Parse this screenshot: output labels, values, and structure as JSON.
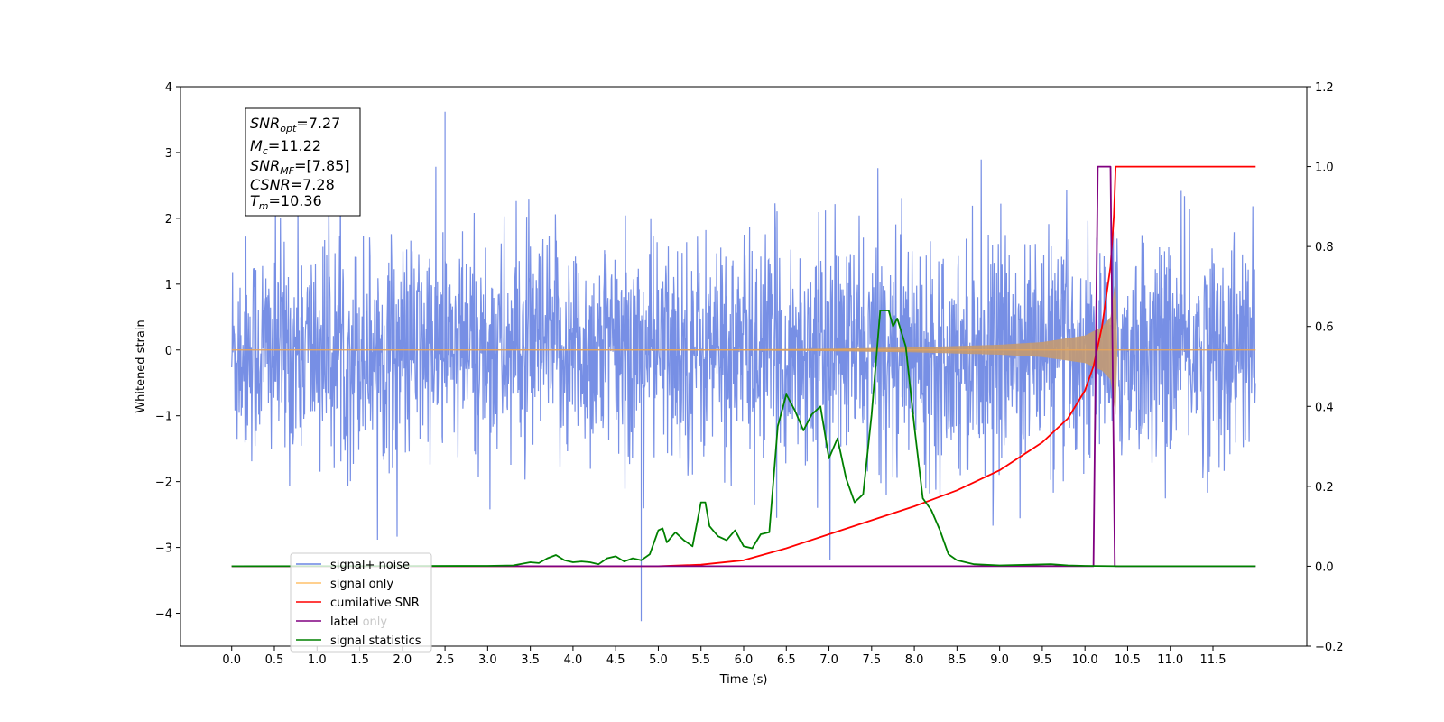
{
  "chart_data": {
    "type": "line",
    "xlabel": "Time (s)",
    "ylabel_left": "Whitened strain",
    "ylabel_right": "",
    "xlim": [
      -0.6,
      12.6
    ],
    "ylim_left": [
      -4.5,
      4.0
    ],
    "ylim_right": [
      -0.2,
      1.2
    ],
    "x_ticks": [
      0.0,
      0.5,
      1.0,
      1.5,
      2.0,
      2.5,
      3.0,
      3.5,
      4.0,
      4.5,
      5.0,
      5.5,
      6.0,
      6.5,
      7.0,
      7.5,
      8.0,
      8.5,
      9.0,
      9.5,
      10.0,
      10.5,
      11.0,
      11.5
    ],
    "x_tick_labels": [
      "0.0",
      "0.5",
      "1.0",
      "1.5",
      "2.0",
      "2.5",
      "3.0",
      "3.5",
      "4.0",
      "4.5",
      "5.0",
      "5.5",
      "6.0",
      "6.5",
      "7.0",
      "7.5",
      "8.0",
      "8.5",
      "9.0",
      "9.5",
      "10.0",
      "10.5",
      "11.0",
      "11.5"
    ],
    "y_ticks_left": [
      4,
      3,
      2,
      1,
      0,
      -1,
      -2,
      -3,
      -4
    ],
    "y_tick_labels_left": [
      "4",
      "3",
      "2",
      "1",
      "0",
      "−1",
      "−2",
      "−3",
      "−4"
    ],
    "y_ticks_right": [
      1.2,
      1.0,
      0.8,
      0.6,
      0.4,
      0.2,
      0.0,
      -0.2
    ],
    "y_tick_labels_right": [
      "1.2",
      "1.0",
      "0.8",
      "0.6",
      "0.4",
      "0.2",
      "0.0",
      "−0.2"
    ],
    "grid": false,
    "legend_position": "lower-left",
    "colors": {
      "noise": "#6b86e3",
      "signal": "#e6a55a",
      "signal_fill": "#c39a72",
      "snr": "#ff0000",
      "label": "#800080",
      "stats": "#008000"
    },
    "series": [
      {
        "name": "signal+ noise",
        "axis": "left",
        "t_start": 0.0,
        "t_end": 12.0,
        "sample_rate": 204.8,
        "seed": 12345,
        "amplitude_notes": "Gaussian noise, std ~0.9, occasional spikes to ~3.6 and ~-4.1"
      },
      {
        "name": "signal only",
        "axis": "left",
        "envelope_points": [
          [
            0.0,
            0.0
          ],
          [
            6.0,
            0.01
          ],
          [
            7.0,
            0.02
          ],
          [
            8.0,
            0.04
          ],
          [
            9.0,
            0.08
          ],
          [
            9.5,
            0.12
          ],
          [
            10.0,
            0.22
          ],
          [
            10.2,
            0.35
          ],
          [
            10.3,
            0.5
          ],
          [
            10.36,
            1.1
          ],
          [
            10.37,
            0.0
          ],
          [
            12.0,
            0.0
          ]
        ]
      },
      {
        "name": "cumilative SNR",
        "axis": "right",
        "x": [
          0.0,
          5.0,
          5.5,
          6.0,
          6.5,
          7.0,
          7.5,
          8.0,
          8.5,
          9.0,
          9.5,
          9.8,
          10.0,
          10.1,
          10.2,
          10.3,
          10.34,
          10.36,
          10.4,
          12.0
        ],
        "values": [
          0.0,
          0.0,
          0.004,
          0.015,
          0.045,
          0.08,
          0.115,
          0.15,
          0.19,
          0.24,
          0.31,
          0.37,
          0.44,
          0.5,
          0.6,
          0.75,
          0.88,
          1.0,
          1.0,
          1.0
        ]
      },
      {
        "name": "label",
        "axis": "right",
        "x": [
          0.0,
          10.1,
          10.15,
          10.3,
          10.35,
          10.37,
          12.0
        ],
        "values": [
          0.0,
          0.0,
          1.0,
          1.0,
          0.0,
          0.0,
          0.0
        ]
      },
      {
        "name": "signal statistics",
        "axis": "right",
        "x": [
          0.0,
          3.0,
          3.3,
          3.5,
          3.6,
          3.7,
          3.8,
          3.9,
          4.0,
          4.1,
          4.2,
          4.3,
          4.4,
          4.5,
          4.6,
          4.7,
          4.8,
          4.9,
          5.0,
          5.05,
          5.1,
          5.2,
          5.3,
          5.4,
          5.5,
          5.55,
          5.6,
          5.7,
          5.8,
          5.9,
          6.0,
          6.1,
          6.2,
          6.3,
          6.4,
          6.5,
          6.6,
          6.7,
          6.8,
          6.9,
          7.0,
          7.1,
          7.2,
          7.3,
          7.4,
          7.5,
          7.6,
          7.7,
          7.75,
          7.8,
          7.9,
          8.0,
          8.1,
          8.2,
          8.3,
          8.4,
          8.5,
          8.7,
          9.0,
          9.6,
          9.8,
          10.0,
          10.4,
          12.0
        ],
        "values": [
          0.0,
          0.001,
          0.002,
          0.01,
          0.008,
          0.02,
          0.028,
          0.015,
          0.01,
          0.012,
          0.01,
          0.005,
          0.02,
          0.025,
          0.012,
          0.02,
          0.015,
          0.03,
          0.09,
          0.095,
          0.06,
          0.085,
          0.065,
          0.05,
          0.16,
          0.16,
          0.1,
          0.075,
          0.065,
          0.09,
          0.05,
          0.045,
          0.08,
          0.085,
          0.35,
          0.43,
          0.39,
          0.34,
          0.38,
          0.4,
          0.27,
          0.32,
          0.22,
          0.16,
          0.18,
          0.38,
          0.64,
          0.64,
          0.6,
          0.62,
          0.55,
          0.35,
          0.17,
          0.14,
          0.09,
          0.03,
          0.015,
          0.005,
          0.002,
          0.005,
          0.002,
          0.001,
          0.0,
          0.0
        ]
      }
    ],
    "legend": [
      "signal+ noise",
      "signal only",
      "cumilative SNR",
      "label",
      "label only",
      "signal statistics"
    ],
    "info_box": {
      "line1_main": "SNR",
      "line1_sub": "opt",
      "line1_value": "=7.27",
      "line2_main": "M",
      "line2_sub": "c",
      "line2_value": "=11.22",
      "line3_main": "SNR",
      "line3_sub": "MF",
      "line3_value": "=[7.85]",
      "line4_main": "CSNR",
      "line4_value": "=7.28",
      "line5_main": "T",
      "line5_sub": "m",
      "line5_value": "=10.36"
    }
  }
}
